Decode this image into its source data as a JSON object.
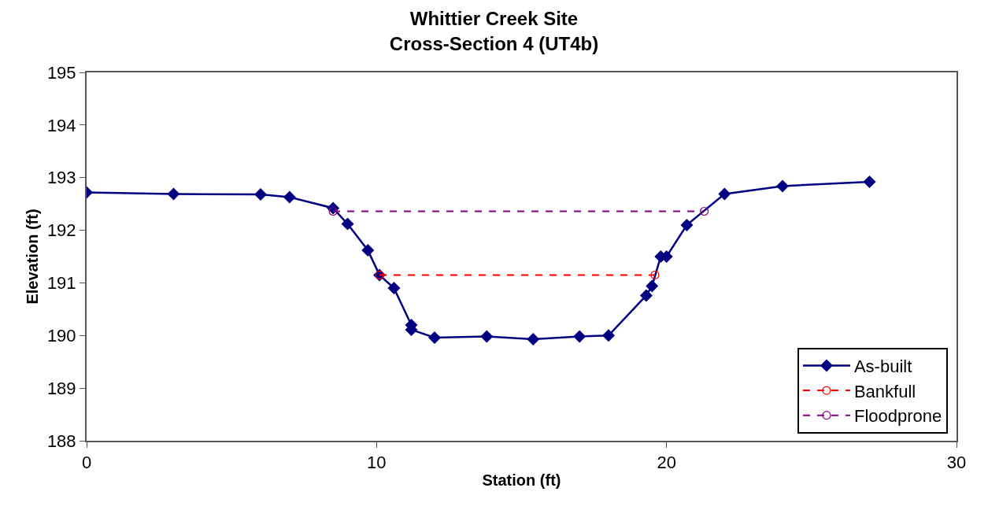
{
  "chart_data": {
    "type": "line",
    "title": "Whittier Creek Site\nCross-Section 4 (UT4b)",
    "xlabel": "Station (ft)",
    "ylabel": "Elevation (ft)",
    "xlim": [
      0,
      30
    ],
    "xticks": [
      0,
      10,
      20,
      30
    ],
    "ylim": [
      188,
      195
    ],
    "yticks": [
      188,
      189,
      190,
      191,
      192,
      193,
      194,
      195
    ],
    "legend": "bottom right",
    "series": [
      {
        "name": "As-built",
        "color": "#000080",
        "marker": "diamond",
        "line_style": "solid",
        "x": [
          0,
          3.0,
          6.0,
          7.0,
          8.5,
          9.0,
          9.7,
          10.1,
          10.6,
          11.2,
          11.2,
          12.0,
          13.8,
          15.4,
          17.0,
          18.0,
          19.3,
          19.5,
          19.8,
          20.0,
          20.7,
          22.0,
          24.0,
          27.0
        ],
        "values": [
          192.72,
          192.69,
          192.68,
          192.63,
          192.42,
          192.12,
          191.62,
          191.15,
          190.9,
          190.2,
          190.11,
          189.96,
          189.98,
          189.93,
          189.98,
          190.0,
          190.76,
          190.94,
          191.5,
          191.5,
          192.1,
          192.69,
          192.84,
          192.92
        ]
      },
      {
        "name": "Bankfull",
        "color": "#ff0000",
        "marker": "circle",
        "line_style": "dashed",
        "x": [
          10.1,
          19.6
        ],
        "values": [
          191.15,
          191.15
        ]
      },
      {
        "name": "Floodprone",
        "color": "#800080",
        "marker": "circle",
        "line_style": "dashed",
        "x": [
          8.5,
          21.3
        ],
        "values": [
          192.36,
          192.36
        ]
      }
    ]
  }
}
